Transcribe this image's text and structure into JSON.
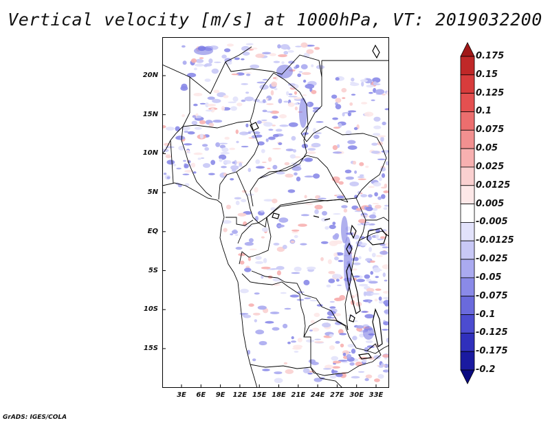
{
  "title": "Vertical velocity [m/s] at 1000hPa, VT: 2019032200",
  "credit": "GrADS: IGES/COLA",
  "map": {
    "lat_labels": [
      "20N",
      "15N",
      "10N",
      "5N",
      "EQ",
      "5S",
      "10S",
      "15S"
    ],
    "lon_labels": [
      "3E",
      "6E",
      "9E",
      "12E",
      "15E",
      "18E",
      "21E",
      "24E",
      "27E",
      "30E",
      "33E"
    ],
    "colors": {
      "border": "#000000",
      "land_bg": "#ffffff"
    }
  },
  "colorbar": {
    "labels": [
      "0.175",
      "0.15",
      "0.125",
      "0.1",
      "0.075",
      "0.05",
      "0.025",
      "0.0125",
      "0.005",
      "-0.005",
      "-0.0125",
      "-0.025",
      "-0.05",
      "-0.075",
      "-0.1",
      "-0.125",
      "-0.175",
      "-0.2"
    ],
    "colors": [
      "#a01818",
      "#c02828",
      "#d83c3c",
      "#e45050",
      "#ec6e6e",
      "#f29090",
      "#f7b0b0",
      "#fad0d0",
      "#fde8e8",
      "#ffffff",
      "#e2e2fb",
      "#c8c8f6",
      "#aaaaf0",
      "#8a8ae8",
      "#6a6adc",
      "#4c4cd0",
      "#3030bc",
      "#1a1aa0",
      "#0a0a80"
    ]
  }
}
